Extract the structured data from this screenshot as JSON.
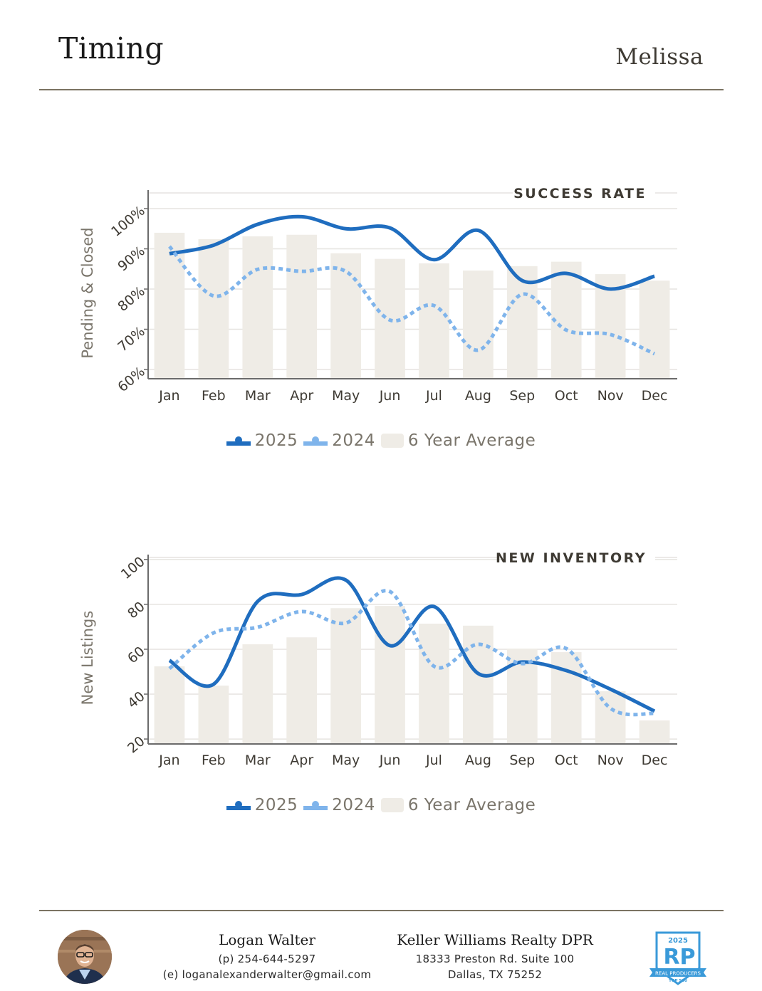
{
  "header": {
    "title": "Timing",
    "city": "Melissa"
  },
  "chart_data": [
    {
      "type": "bar",
      "title": "SUCCESS RATE",
      "xlabel": "",
      "ylabel": "Pending & Closed",
      "ylim": [
        57.7,
        103.9
      ],
      "yticks": [
        60,
        70,
        80,
        90,
        100
      ],
      "ytick_labels": [
        "60%",
        "70%",
        "80%",
        "90%",
        "100%"
      ],
      "grid": true,
      "categories": [
        "Jan",
        "Feb",
        "Mar",
        "Apr",
        "May",
        "Jun",
        "Jul",
        "Aug",
        "Sep",
        "Oct",
        "Nov",
        "Dec"
      ],
      "series": [
        {
          "name": "6 Year Average",
          "type": "bar",
          "color": "#efece6",
          "values": [
            94.0,
            92.4,
            93.1,
            93.5,
            88.9,
            87.5,
            86.4,
            84.6,
            85.7,
            86.8,
            83.7,
            82.1
          ]
        },
        {
          "name": "2025",
          "type": "line",
          "style": "solid",
          "color": "#1f6dbf",
          "values": [
            88.8,
            90.9,
            96.1,
            98.0,
            95.0,
            95.2,
            87.3,
            94.6,
            82.1,
            83.9,
            80.0,
            83.2
          ]
        },
        {
          "name": "2024",
          "type": "line",
          "style": "dotted",
          "color": "#7fb4eb",
          "values": [
            90.6,
            78.3,
            84.9,
            84.4,
            84.4,
            72.3,
            75.9,
            64.8,
            78.7,
            69.8,
            68.7,
            63.9
          ]
        }
      ],
      "legend": {
        "position": "bottom-center",
        "items": [
          "2025",
          "2024",
          "6 Year Average"
        ]
      }
    },
    {
      "type": "bar",
      "title": "NEW INVENTORY",
      "xlabel": "",
      "ylabel": "New Listings",
      "ylim": [
        17.8,
        100.9
      ],
      "yticks": [
        20,
        40,
        60,
        80,
        100
      ],
      "ytick_labels": [
        "20",
        "40",
        "60",
        "80",
        "100"
      ],
      "grid": true,
      "categories": [
        "Jan",
        "Feb",
        "Mar",
        "Apr",
        "May",
        "Jun",
        "Jul",
        "Aug",
        "Sep",
        "Oct",
        "Nov",
        "Dec"
      ],
      "series": [
        {
          "name": "6 Year Average",
          "type": "bar",
          "color": "#efece6",
          "values": [
            52.4,
            43.8,
            62.2,
            65.3,
            78.3,
            79.3,
            71.4,
            70.5,
            60.3,
            58.7,
            41.3,
            28.3
          ]
        },
        {
          "name": "2025",
          "type": "line",
          "style": "solid",
          "color": "#1f6dbf",
          "values": [
            55.0,
            44.4,
            81.3,
            84.4,
            90.8,
            61.6,
            79.0,
            49.2,
            54.3,
            50.5,
            42.2,
            32.4
          ]
        },
        {
          "name": "2024",
          "type": "line",
          "style": "dotted",
          "color": "#7fb4eb",
          "values": [
            51.4,
            67.3,
            69.8,
            76.8,
            71.7,
            85.7,
            52.4,
            62.2,
            53.6,
            60.3,
            33.7,
            31.4
          ]
        }
      ],
      "legend": {
        "position": "bottom-center",
        "items": [
          "2025",
          "2024",
          "6 Year Average"
        ]
      }
    }
  ],
  "legend_labels": {
    "s2025": "2025",
    "s2024": "2024",
    "avg": "6 Year Average"
  },
  "colors": {
    "line2025": "#1f6dbf",
    "line2024": "#7fb4eb",
    "bar": "#efece6",
    "text": "#3e3a33",
    "axis_label": "#7a756b",
    "rule": "#7b7362"
  },
  "footer": {
    "agent_name": "Logan Walter",
    "agent_phone": "(p) 254-644-5297",
    "agent_email": "(e) loganalexanderwalter@gmail.com",
    "office_name": "Keller Williams Realty DPR",
    "office_address1": "18333 Preston Rd. Suite 100",
    "office_address2": "Dallas, TX 75252",
    "badge": {
      "year": "2025",
      "letters": "RP",
      "ribbon": "REAL PRODUCERS",
      "sub": "TOP 500",
      "region": "NORTH DALLAS"
    }
  }
}
